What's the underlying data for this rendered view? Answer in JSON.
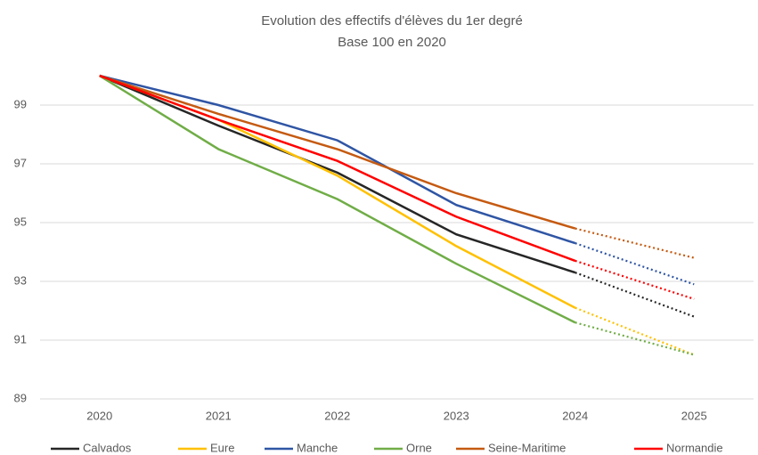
{
  "chart_data": {
    "type": "line",
    "title": "Evolution des effectifs d'élèves du 1er degré",
    "subtitle": "Base 100 en 2020",
    "categories": [
      "2020",
      "2021",
      "2022",
      "2023",
      "2024",
      "2025"
    ],
    "dotted_from": "2024",
    "ylim": [
      89,
      100
    ],
    "yticks": [
      89,
      91,
      93,
      95,
      97,
      99
    ],
    "grid": true,
    "legend": "bottom",
    "series": [
      {
        "name": "Calvados",
        "color": "#262626",
        "values": [
          100,
          98.3,
          96.7,
          94.6,
          93.3,
          91.8
        ]
      },
      {
        "name": "Eure",
        "color": "#ffc000",
        "values": [
          100,
          98.5,
          96.6,
          94.2,
          92.1,
          90.5
        ]
      },
      {
        "name": "Manche",
        "color": "#2f55a4",
        "values": [
          100,
          99.0,
          97.8,
          95.6,
          94.3,
          92.9
        ]
      },
      {
        "name": "Orne",
        "color": "#70ad47",
        "values": [
          100,
          97.5,
          95.8,
          93.6,
          91.6,
          90.5
        ]
      },
      {
        "name": "Seine-Maritime",
        "color": "#c55a11",
        "values": [
          100,
          98.7,
          97.5,
          96.0,
          94.8,
          93.8
        ]
      },
      {
        "name": "Normandie",
        "color": "#ff0000",
        "values": [
          100,
          98.5,
          97.1,
          95.2,
          93.7,
          92.4
        ]
      }
    ]
  }
}
